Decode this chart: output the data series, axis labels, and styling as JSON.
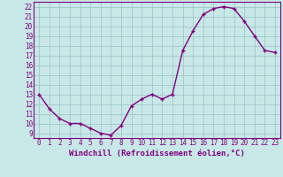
{
  "x": [
    0,
    1,
    2,
    3,
    4,
    5,
    6,
    7,
    8,
    9,
    10,
    11,
    12,
    13,
    14,
    15,
    16,
    17,
    18,
    19,
    20,
    21,
    22,
    23
  ],
  "y": [
    13.0,
    11.5,
    10.5,
    10.0,
    10.0,
    9.5,
    9.0,
    8.8,
    9.8,
    11.8,
    12.5,
    13.0,
    12.5,
    13.0,
    17.5,
    19.5,
    21.2,
    21.8,
    22.0,
    21.8,
    20.5,
    19.0,
    17.5,
    17.3
  ],
  "line_color": "#800080",
  "marker": "+",
  "bg_color": "#c8e8e8",
  "grid_color": "#a0c8c8",
  "xlabel": "Windchill (Refroidissement éolien,°C)",
  "xlim": [
    -0.5,
    23.5
  ],
  "ylim": [
    8.5,
    22.5
  ],
  "yticks": [
    9,
    10,
    11,
    12,
    13,
    14,
    15,
    16,
    17,
    18,
    19,
    20,
    21,
    22
  ],
  "xticks": [
    0,
    1,
    2,
    3,
    4,
    5,
    6,
    7,
    8,
    9,
    10,
    11,
    12,
    13,
    14,
    15,
    16,
    17,
    18,
    19,
    20,
    21,
    22,
    23
  ],
  "tick_label_color": "#800080",
  "xlabel_color": "#800080",
  "line_width": 1.0,
  "marker_size": 3,
  "tick_fontsize": 5.5,
  "xlabel_fontsize": 6.5
}
